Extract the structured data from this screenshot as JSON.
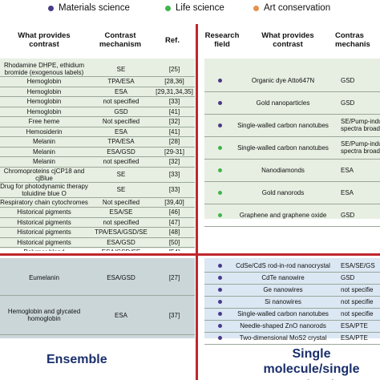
{
  "legend": [
    {
      "label": "Materials science",
      "color": "#4b3a86"
    },
    {
      "label": "Life science",
      "color": "#3fb54a"
    },
    {
      "label": "Art conservation",
      "color": "#e5904c"
    }
  ],
  "ensemble": {
    "header": {
      "what": "What provides\ncontrast",
      "mech": "Contrast\nmechanism",
      "ref": "Ref."
    },
    "rows": [
      {
        "what": "Rhodamine DHPE, ethidium\nbromide (exogenous labels)",
        "mech": "SE",
        "ref": "[25]"
      },
      {
        "what": "Hemoglobin",
        "mech": "TPA/ESA",
        "ref": "[28,36]"
      },
      {
        "what": "Hemoglobin",
        "mech": "ESA",
        "ref": "[29,31,34,35]"
      },
      {
        "what": "Hemoglobin",
        "mech": "not specified",
        "ref": "[33]"
      },
      {
        "what": "Hemoglobin",
        "mech": "GSD",
        "ref": "[41]"
      },
      {
        "what": "Free heme",
        "mech": "Not specified",
        "ref": "[32]"
      },
      {
        "what": "Hemosiderin",
        "mech": "ESA",
        "ref": "[41]"
      },
      {
        "what": "Melanin",
        "mech": "TPA/ESA",
        "ref": "[28]"
      },
      {
        "what": "Melanin",
        "mech": "ESA/GSD",
        "ref": "[29-31]"
      },
      {
        "what": "Melanin",
        "mech": "not specified",
        "ref": "[32]"
      },
      {
        "what": "Chromoproteins cjCP18 and\ncjBlue",
        "mech": "SE",
        "ref": "[33]"
      },
      {
        "what": "Drug for photodynamic therapy\ntoluidine blue O",
        "mech": "SE",
        "ref": "[33]"
      },
      {
        "what": "Respiratory chain cytochromes",
        "mech": "Not specified",
        "ref": "[39,40]"
      },
      {
        "what": "Historical pigments",
        "mech": "ESA/SE",
        "ref": "[46]"
      },
      {
        "what": "Historical pigments",
        "mech": "not specified",
        "ref": "[47]"
      },
      {
        "what": "Historical pigments",
        "mech": "TPA/ESA/GSD/SE",
        "ref": "[48]"
      },
      {
        "what": "Historical pigments",
        "mech": "ESA/GSD",
        "ref": "[50]"
      },
      {
        "what": "Polymer blend",
        "mech": "ESA/GSD/SE",
        "ref": "[54]"
      }
    ],
    "bottom_rows": [
      {
        "what": "Eumelanin",
        "mech": "ESA/GSD",
        "ref": "[27]"
      },
      {
        "what": "Hemoglobin and glycated\nhomoglobin",
        "mech": "ESA",
        "ref": "[37]"
      }
    ],
    "label": "Ensemble"
  },
  "single": {
    "header": {
      "field": "Research\nfield",
      "what": "What provides\ncontrast",
      "mech": "Contras\nmechanis"
    },
    "rows": [
      {
        "color": "#4b3a86",
        "what": "Organic dye Atto647N",
        "mech": "GSD"
      },
      {
        "color": "#4b3a86",
        "what": "Gold nanoparticles",
        "mech": "GSD"
      },
      {
        "color": "#4b3a86",
        "what": "Single-walled carbon nanotubes",
        "mech": "SE/Pump-indu\nspectra broade"
      },
      {
        "color": "#3fb54a",
        "what": "Single-walled carbon nanotubes",
        "mech": "SE/Pump-indu\nspectra broade"
      },
      {
        "color": "#3fb54a",
        "what": "Nanodiamonds",
        "mech": "ESA"
      },
      {
        "color": "#3fb54a",
        "what": "Gold nanorods",
        "mech": "ESA"
      },
      {
        "color": "#3fb54a",
        "what": "Graphene and graphene oxide",
        "mech": "GSD"
      }
    ],
    "bottom_rows": [
      {
        "color": "#4b3a86",
        "what": "CdSe/CdS rod-in-rod nanocrystal",
        "mech": "ESA/SE/GS"
      },
      {
        "color": "#4b3a86",
        "what": "CdTe nanowire",
        "mech": "GSD"
      },
      {
        "color": "#4b3a86",
        "what": "Ge nanowires",
        "mech": "not specifie"
      },
      {
        "color": "#4b3a86",
        "what": "Si nanowires",
        "mech": "not specifie"
      },
      {
        "color": "#4b3a86",
        "what": "Single-walled carbon nanotubes",
        "mech": "not specifie"
      },
      {
        "color": "#4b3a86",
        "what": "Needle-shaped ZnO nanorods",
        "mech": "ESA/PTE"
      },
      {
        "color": "#4b3a86",
        "what": "Two-dimensional MoS2 crystal",
        "mech": "ESA/PTE"
      }
    ],
    "label": "Single molecule/single\nnanostructure"
  }
}
